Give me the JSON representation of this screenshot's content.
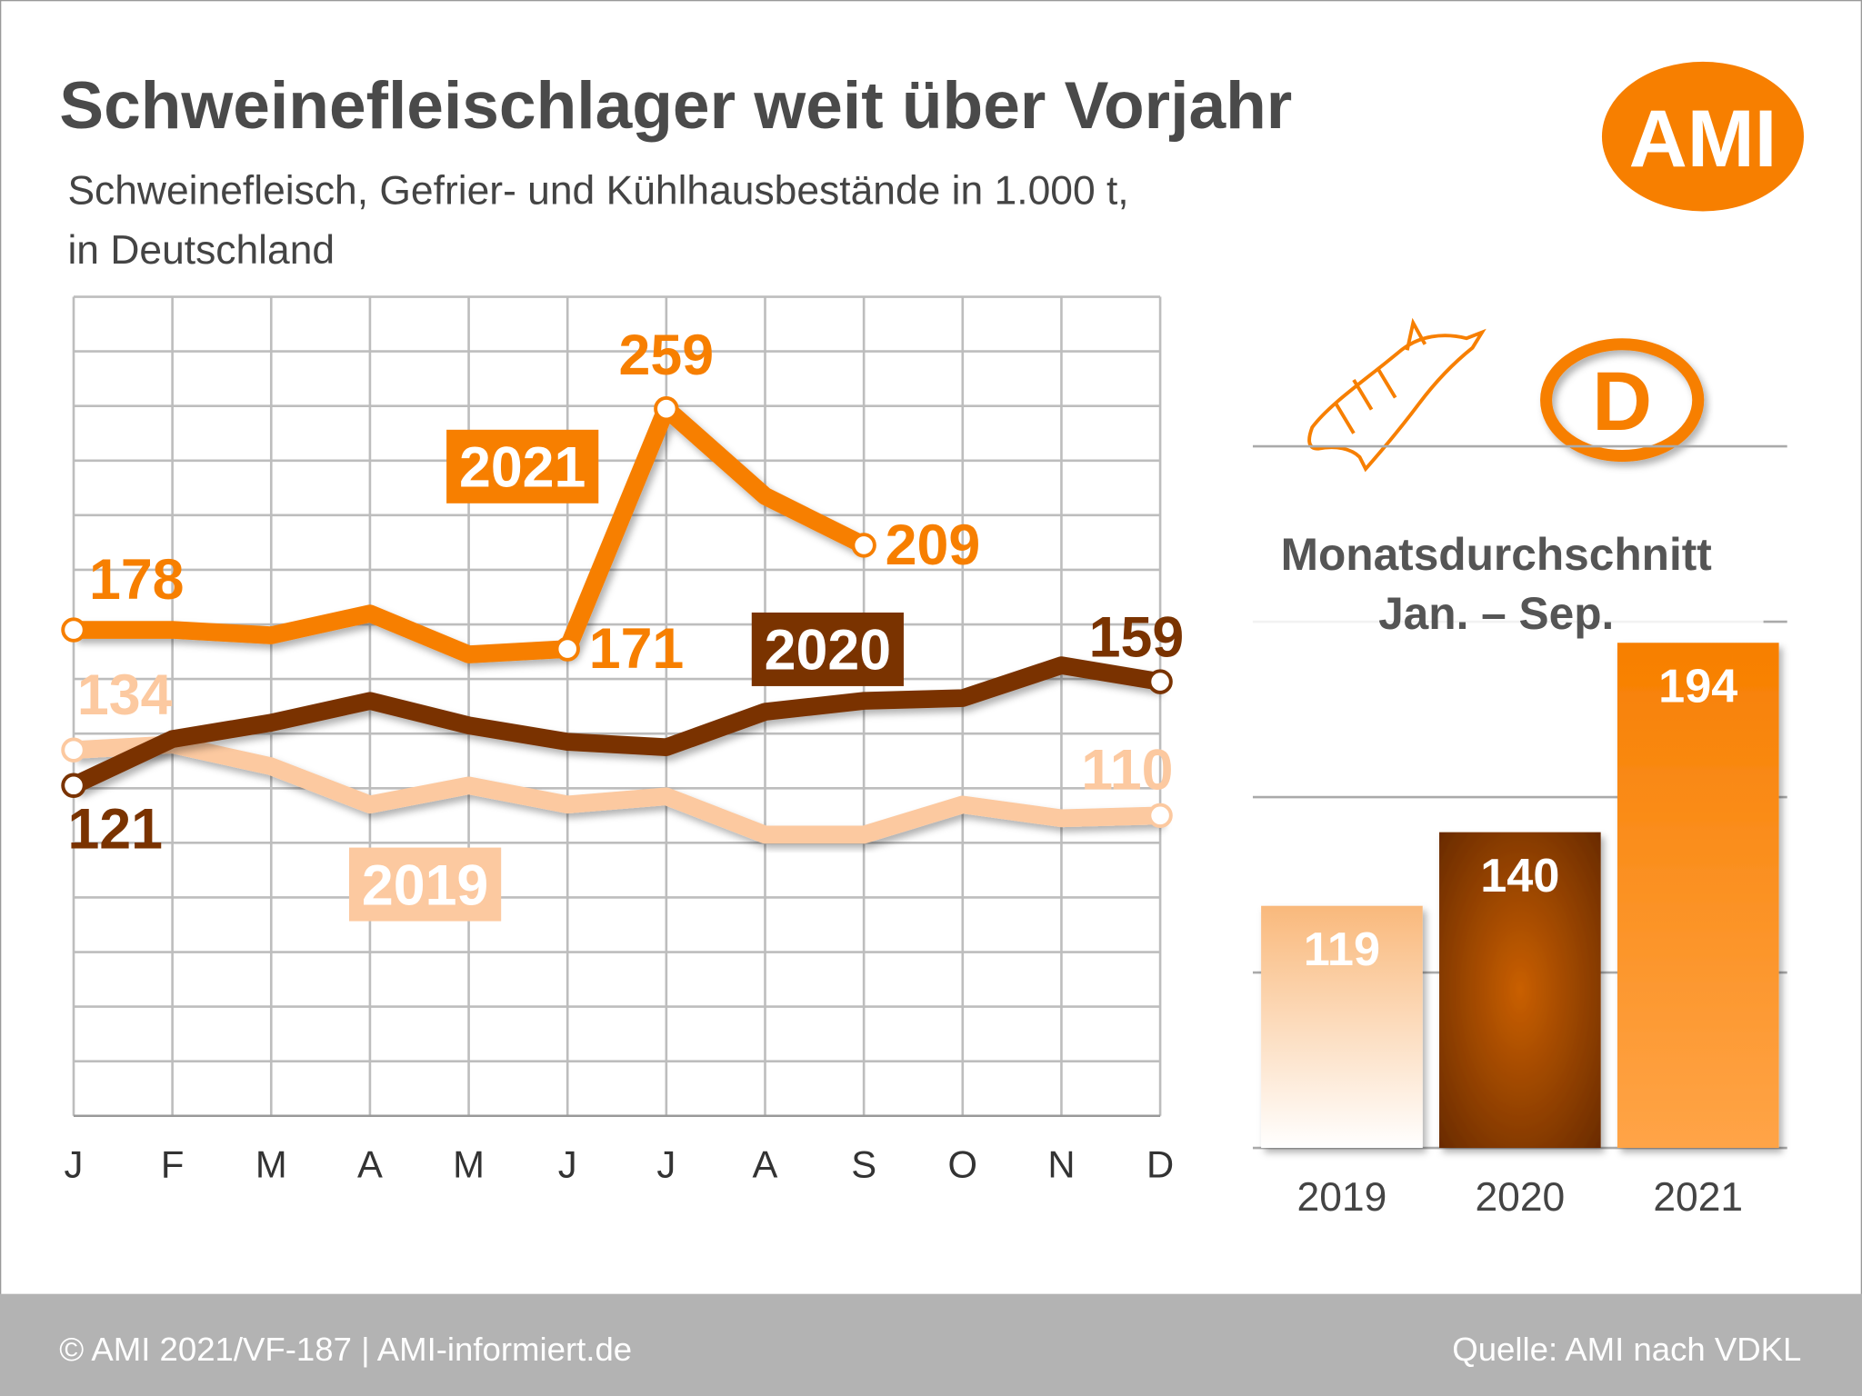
{
  "title": "Schweinefleischlager weit über Vorjahr",
  "subtitle": [
    "Schweinefleisch, Gefrier- und Kühlhausbestände in 1.000 t,",
    "in Deutschland"
  ],
  "logo": "AMI",
  "badge": "D",
  "footer": {
    "left": "© AMI 2021/VF-187 | AMI-informiert.de",
    "right": "Quelle: AMI nach VDKL"
  },
  "chart_data": [
    {
      "type": "line",
      "categories": [
        "J",
        "F",
        "M",
        "A",
        "M",
        "J",
        "J",
        "A",
        "S",
        "O",
        "N",
        "D"
      ],
      "ylim": [
        0,
        300
      ],
      "yticks": [
        0,
        20,
        40,
        60,
        80,
        100,
        120,
        140,
        160,
        180,
        200,
        220,
        240,
        260,
        280,
        300
      ],
      "grid": true,
      "series": [
        {
          "name": "2019",
          "color": "#fcc9a0",
          "values": [
            134,
            136,
            128,
            114,
            121,
            114,
            117,
            103,
            103,
            114,
            109,
            110
          ],
          "value_labels": [
            "134",
            null,
            null,
            null,
            null,
            null,
            null,
            null,
            null,
            null,
            null,
            "110"
          ]
        },
        {
          "name": "2020",
          "color": "#7a3300",
          "values": [
            121,
            138,
            144,
            152,
            143,
            137,
            135,
            148,
            152,
            153,
            165,
            159
          ],
          "value_labels": [
            "121",
            null,
            null,
            null,
            null,
            null,
            null,
            null,
            null,
            null,
            null,
            "159"
          ]
        },
        {
          "name": "2021",
          "color": "#f77f00",
          "values": [
            178,
            178,
            176,
            184,
            169,
            171,
            259,
            227,
            209,
            null,
            null,
            null
          ],
          "value_labels": [
            "178",
            null,
            null,
            null,
            null,
            "171",
            "259",
            null,
            "209",
            null,
            null,
            null
          ]
        }
      ]
    },
    {
      "type": "bar",
      "title": [
        "Monatsdurchschnitt",
        "Jan. –  Sep."
      ],
      "categories": [
        "2019",
        "2020",
        "2021"
      ],
      "values": [
        119,
        140,
        194
      ],
      "colors": [
        "#f9b97c",
        "#a84a00",
        "#f77f00"
      ],
      "ylim": [
        50,
        250
      ],
      "yticks": [
        50,
        100,
        150,
        200,
        250
      ],
      "grid": true
    }
  ]
}
